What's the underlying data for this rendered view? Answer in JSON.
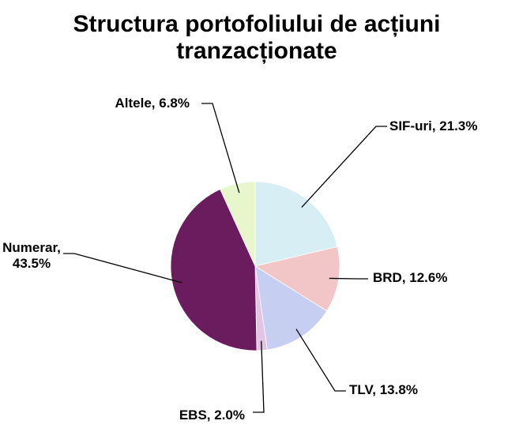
{
  "chart_data": {
    "type": "pie",
    "title": "Structura portofoliului de acțiuni tranzacționate",
    "categories": [
      "SIF-uri",
      "BRD",
      "TLV",
      "EBS",
      "Numerar",
      "Altele"
    ],
    "values": [
      21.3,
      12.6,
      13.8,
      2.0,
      43.5,
      6.8
    ],
    "value_labels": [
      "SIF-uri, 21.3%",
      "BRD, 12.6%",
      "TLV, 13.8%",
      "EBS, 2.0%",
      "Numerar, 43.5%",
      "Altele, 6.8%"
    ],
    "colors": [
      "#d6eef4",
      "#f2c6c6",
      "#c6cef2",
      "#e2c4e4",
      "#6b1c5e",
      "#e8f6cc"
    ]
  }
}
